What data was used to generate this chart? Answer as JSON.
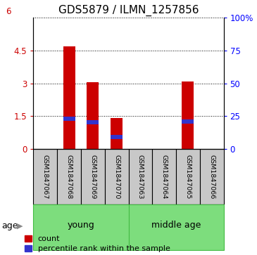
{
  "title": "GDS5879 / ILMN_1257856",
  "samples": [
    "GSM1847067",
    "GSM1847068",
    "GSM1847069",
    "GSM1847070",
    "GSM1847063",
    "GSM1847064",
    "GSM1847065",
    "GSM1847066"
  ],
  "count_values": [
    0.0,
    4.7,
    3.05,
    1.42,
    0.0,
    0.0,
    3.08,
    0.0
  ],
  "percentile_values": [
    0.0,
    1.38,
    1.22,
    0.55,
    0.0,
    0.0,
    1.25,
    0.0
  ],
  "ylim_left": [
    0,
    6
  ],
  "ylim_right": [
    0,
    100
  ],
  "yticks_left": [
    0,
    1.5,
    3.0,
    4.5
  ],
  "yticks_right": [
    0,
    25,
    50,
    75,
    100
  ],
  "ytick_left_labels": [
    "0",
    "1.5",
    "3",
    "4.5"
  ],
  "ytick_right_labels": [
    "0",
    "25",
    "50",
    "75",
    "100%"
  ],
  "groups": [
    {
      "label": "young",
      "start": 0,
      "end": 3
    },
    {
      "label": "middle age",
      "start": 4,
      "end": 7
    }
  ],
  "age_label": "age",
  "bar_color_red": "#cc0000",
  "bar_color_blue": "#3333cc",
  "bar_width": 0.5,
  "blue_bar_width": 0.5,
  "blue_bar_height": 0.18,
  "legend_count": "count",
  "legend_percentile": "percentile rank within the sample",
  "label_area_color": "#c8c8c8",
  "group_area_color": "#7ddd7d",
  "group_border_color": "#44bb44",
  "title_fontsize": 11,
  "tick_fontsize": 8.5,
  "sample_fontsize": 6.8,
  "group_fontsize": 9,
  "age_fontsize": 9,
  "legend_fontsize": 8
}
